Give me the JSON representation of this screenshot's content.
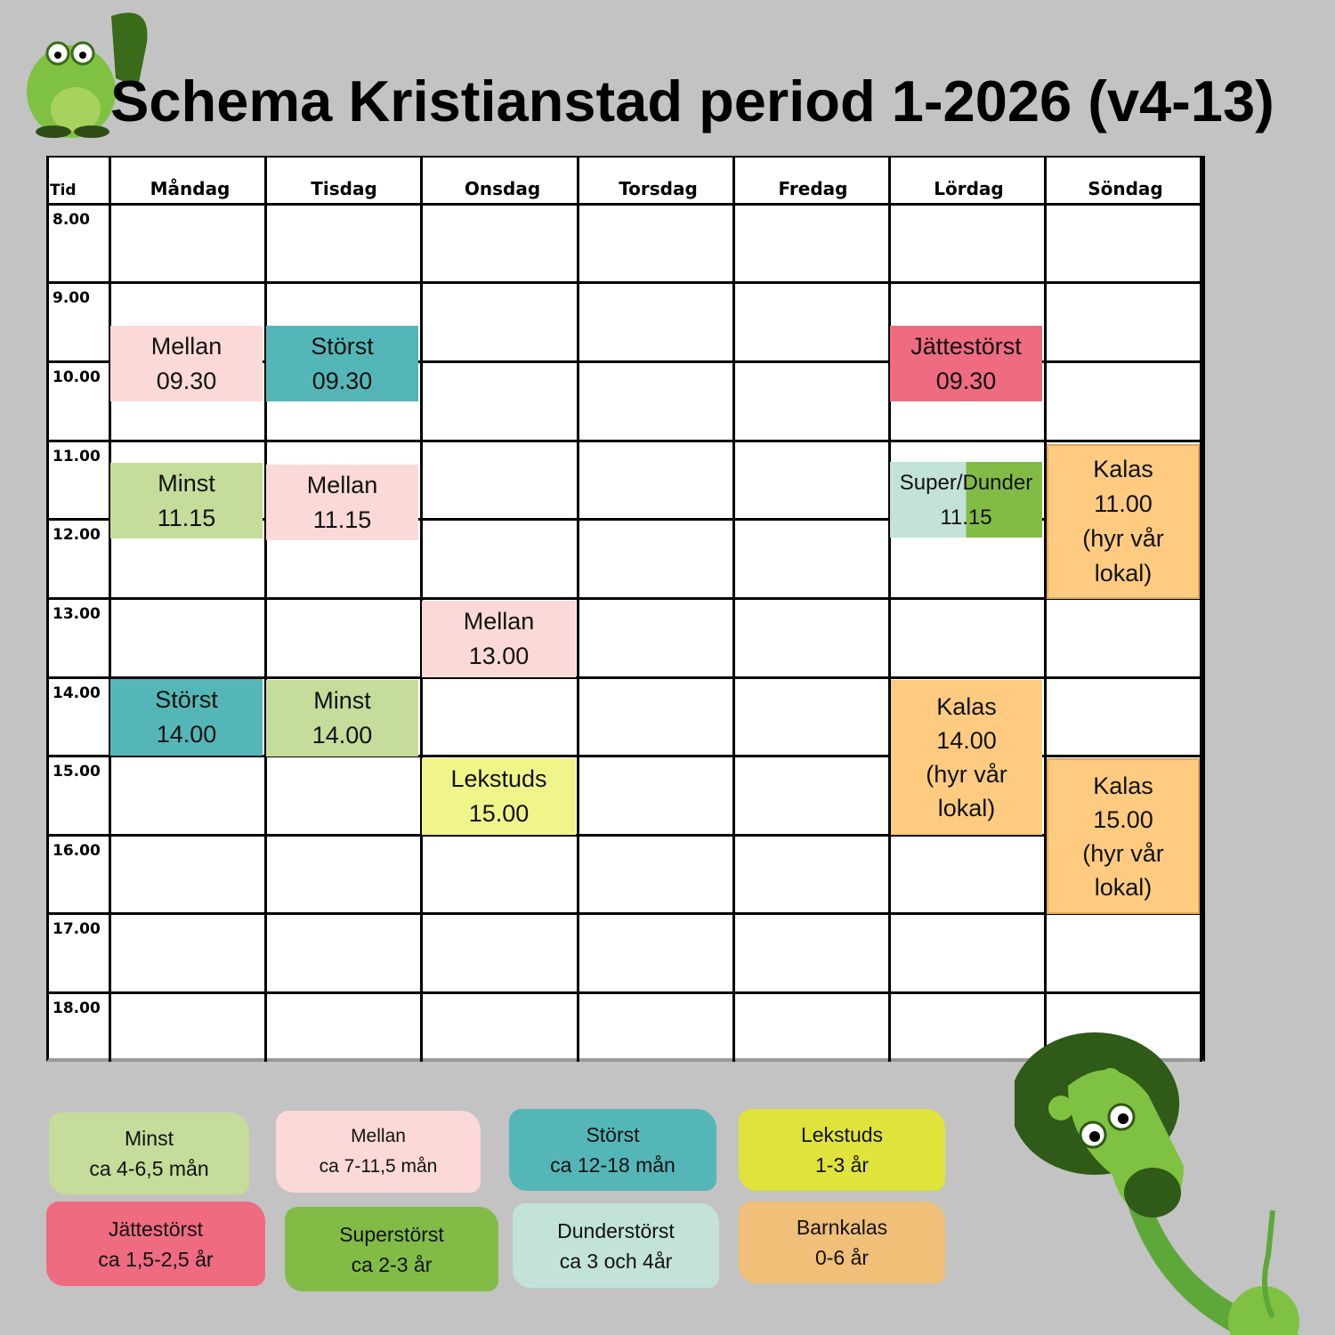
{
  "title": "Schema Kristianstad period 1-2026 (v4-13)",
  "header": {
    "time": "Tid",
    "days": [
      "Måndag",
      "Tisdag",
      "Onsdag",
      "Torsdag",
      "Fredag",
      "Lördag",
      "Söndag"
    ]
  },
  "times": [
    "8.00",
    "9.00",
    "10.00",
    "11.00",
    "12.00",
    "13.00",
    "14.00",
    "15.00",
    "16.00",
    "17.00",
    "18.00"
  ],
  "events": [
    {
      "label": "Mellan",
      "time": "09.30",
      "color": "#fbd9d8"
    },
    {
      "label": "Störst",
      "time": "09.30",
      "color": "#55b6b7"
    },
    {
      "label": "Jättestörst",
      "time": "09.30",
      "color": "#ee6b80"
    },
    {
      "label": "Minst",
      "time": "11.15",
      "color": "#c6dc9a"
    },
    {
      "label": "Mellan",
      "time": "11.15",
      "color": "#fbd9d8"
    },
    {
      "label": "Super/Dunder",
      "time": "11.15",
      "color": "#c2e2da"
    },
    {
      "label": "Kalas",
      "time": "11.00",
      "note": "(hyr vår lokal)",
      "color": "#fecb80"
    },
    {
      "label": "Mellan",
      "time": "13.00",
      "color": "#fbd9d8"
    },
    {
      "label": "Störst",
      "time": "14.00",
      "color": "#55b6b7"
    },
    {
      "label": "Minst",
      "time": "14.00",
      "color": "#c6dc9a"
    },
    {
      "label": "Kalas",
      "time": "14.00",
      "note": "(hyr vår lokal)",
      "color": "#fecb80"
    },
    {
      "label": "Lekstuds",
      "time": "15.00",
      "color": "#f0f58a"
    },
    {
      "label": "Kalas",
      "time": "15.00",
      "note": "(hyr vår lokal)",
      "color": "#fecb80"
    }
  ],
  "legend": [
    {
      "name": "Minst",
      "age": "ca 4-6,5 mån",
      "color": "#c6dc9a"
    },
    {
      "name": "Mellan",
      "age": "ca 7-11,5 mån",
      "color": "#fbd9d8"
    },
    {
      "name": "Störst",
      "age": "ca 12-18 mån",
      "color": "#55b6b7"
    },
    {
      "name": "Lekstuds",
      "age": "1-3 år",
      "color": "#dfe33b"
    },
    {
      "name": "Jättestörst",
      "age": "ca 1,5-2,5 år",
      "color": "#ee6b80"
    },
    {
      "name": "Superstörst",
      "age": "ca 2-3 år",
      "color": "#82bc46"
    },
    {
      "name": "Dunderstörst",
      "age": "ca 3 och 4år",
      "color": "#c2e2da"
    },
    {
      "name": "Barnkalas",
      "age": "0-6 år",
      "color": "#f0bf78"
    }
  ]
}
